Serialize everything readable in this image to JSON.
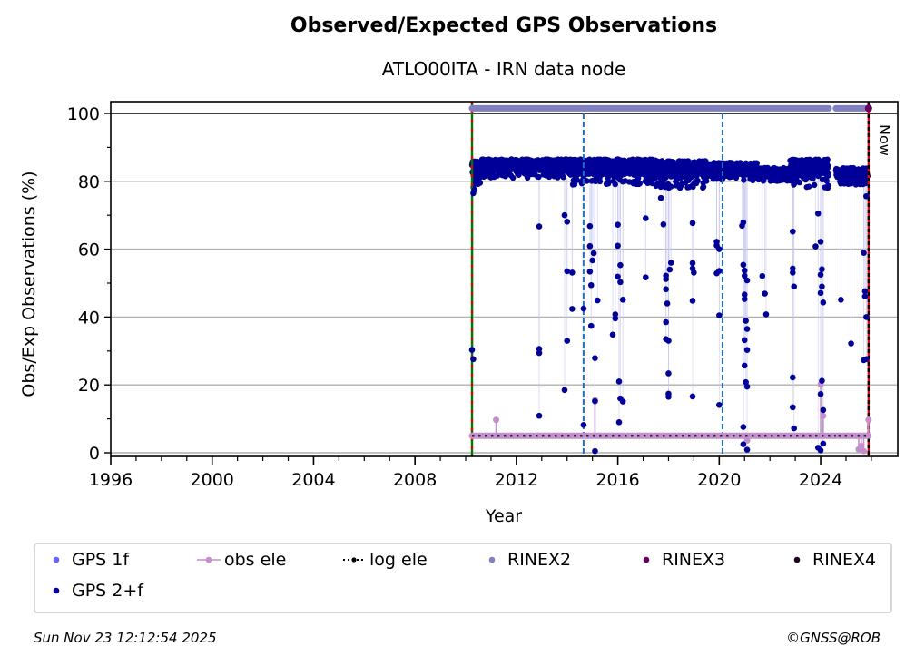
{
  "chart_data": {
    "type": "scatter",
    "title": "Observed/Expected GPS Observations",
    "subtitle": "ATLO00ITA - IRN data node",
    "xlabel": "Year",
    "ylabel": "Obs/Exp Observations (%)",
    "xlim": [
      1996,
      2026.8
    ],
    "ylim": [
      -1,
      103.5
    ],
    "xticks": [
      1996,
      2000,
      2004,
      2008,
      2012,
      2016,
      2020,
      2024
    ],
    "xtick_labels": [
      "1996",
      "2000",
      "2004",
      "2008",
      "2012",
      "2016",
      "2020",
      "2024"
    ],
    "yticks": [
      0,
      20,
      40,
      60,
      80,
      100
    ],
    "ytick_labels": [
      "0",
      "20",
      "40",
      "60",
      "80",
      "100"
    ],
    "grid": "y",
    "now_label": "Now",
    "vertical_markers": [
      {
        "name": "first-data",
        "year": 2010.25,
        "style": "green-red-dashed"
      },
      {
        "name": "equipment-change",
        "year": 2014.65,
        "style": "blue-dashed"
      },
      {
        "name": "equipment-change",
        "year": 2020.13,
        "style": "blue-dashed"
      },
      {
        "name": "now",
        "year": 2025.89,
        "style": "black-red-dashed"
      }
    ],
    "series": [
      {
        "name": "GPS 1f",
        "color": "#6666ff",
        "points": []
      },
      {
        "name": "GPS 2+f",
        "color": "#000099",
        "band": [
          {
            "x0": 2010.25,
            "x1": 2010.6,
            "ymin": 76,
            "ymax": 86
          },
          {
            "x0": 2010.6,
            "x1": 2014.2,
            "ymin": 81,
            "ymax": 86.5
          },
          {
            "x0": 2014.2,
            "x1": 2017.5,
            "ymin": 79,
            "ymax": 86.5
          },
          {
            "x0": 2017.5,
            "x1": 2019.5,
            "ymin": 78,
            "ymax": 86
          },
          {
            "x0": 2019.5,
            "x1": 2021.5,
            "ymin": 80,
            "ymax": 85.5
          },
          {
            "x0": 2021.5,
            "x1": 2022.8,
            "ymin": 80,
            "ymax": 84
          },
          {
            "x0": 2022.8,
            "x1": 2024.3,
            "ymin": 78,
            "ymax": 86.5
          },
          {
            "x0": 2024.6,
            "x1": 2025.85,
            "ymin": 79,
            "ymax": 84
          }
        ],
        "points": [
          [
            2010.25,
            30.3
          ],
          [
            2010.3,
            27.6
          ],
          [
            2010.3,
            76.5
          ],
          [
            2010.35,
            77.5
          ],
          [
            2012.9,
            66.7
          ],
          [
            2012.9,
            30.6
          ],
          [
            2012.9,
            29.4
          ],
          [
            2012.9,
            10.9
          ],
          [
            2013.9,
            70
          ],
          [
            2013.9,
            18.5
          ],
          [
            2014.0,
            68.1
          ],
          [
            2014.0,
            53.5
          ],
          [
            2014.0,
            33
          ],
          [
            2014.2,
            53.1
          ],
          [
            2014.2,
            42.4
          ],
          [
            2014.65,
            42.5
          ],
          [
            2014.65,
            8.2
          ],
          [
            2014.9,
            66.8
          ],
          [
            2014.9,
            60.9
          ],
          [
            2014.9,
            53.4
          ],
          [
            2014.95,
            49.4
          ],
          [
            2014.95,
            37.4
          ],
          [
            2015.0,
            56.7
          ],
          [
            2015.05,
            58.8
          ],
          [
            2015.1,
            27.9
          ],
          [
            2015.2,
            44.9
          ],
          [
            2015.1,
            15.2
          ],
          [
            2015.1,
            0.5
          ],
          [
            2015.8,
            34.8
          ],
          [
            2015.9,
            40.8
          ],
          [
            2015.9,
            39.6
          ],
          [
            2016.0,
            67.2
          ],
          [
            2016.0,
            61
          ],
          [
            2016.0,
            51.9
          ],
          [
            2016.1,
            55.3
          ],
          [
            2016.1,
            50.3
          ],
          [
            2016.2,
            45.1
          ],
          [
            2016.05,
            21
          ],
          [
            2016.05,
            9
          ],
          [
            2016.1,
            16
          ],
          [
            2016.2,
            15.1
          ],
          [
            2017.1,
            69.1
          ],
          [
            2017.1,
            51.7
          ],
          [
            2017.7,
            75.1
          ],
          [
            2017.8,
            67.3
          ],
          [
            2017.9,
            52.2
          ],
          [
            2017.9,
            51.2
          ],
          [
            2017.9,
            48.2
          ],
          [
            2017.95,
            44
          ],
          [
            2017.9,
            38.5
          ],
          [
            2018.0,
            33
          ],
          [
            2017.9,
            33.5
          ],
          [
            2018.0,
            23.4
          ],
          [
            2018.0,
            17.4
          ],
          [
            2018.0,
            16.5
          ],
          [
            2018.05,
            54
          ],
          [
            2018.1,
            56
          ],
          [
            2018.95,
            67.7
          ],
          [
            2018.95,
            55.9
          ],
          [
            2018.95,
            54.3
          ],
          [
            2019.0,
            53.1
          ],
          [
            2018.95,
            44.8
          ],
          [
            2018.95,
            16.6
          ],
          [
            2019.9,
            62.2
          ],
          [
            2019.9,
            61.1
          ],
          [
            2020.0,
            60
          ],
          [
            2020.0,
            53.6
          ],
          [
            2019.9,
            52.9
          ],
          [
            2020.0,
            40.5
          ],
          [
            2020.0,
            14.1
          ],
          [
            2020.95,
            67.9
          ],
          [
            2020.9,
            66.9
          ],
          [
            2020.95,
            55.4
          ],
          [
            2021.0,
            53.7
          ],
          [
            2021.0,
            52.2
          ],
          [
            2021.1,
            50.8
          ],
          [
            2021.0,
            46.6
          ],
          [
            2021.0,
            45.3
          ],
          [
            2021.05,
            38.9
          ],
          [
            2021.1,
            36.5
          ],
          [
            2021.0,
            33.2
          ],
          [
            2021.1,
            30.3
          ],
          [
            2021.0,
            25.7
          ],
          [
            2021.05,
            20.8
          ],
          [
            2021.1,
            19.5
          ],
          [
            2020.95,
            7.6
          ],
          [
            2020.95,
            2.5
          ],
          [
            2021.1,
            0.9
          ],
          [
            2021.7,
            52.1
          ],
          [
            2021.8,
            46.9
          ],
          [
            2021.85,
            40.8
          ],
          [
            2022.9,
            65.2
          ],
          [
            2022.9,
            54.3
          ],
          [
            2022.9,
            53.1
          ],
          [
            2022.95,
            49
          ],
          [
            2022.9,
            22.2
          ],
          [
            2022.9,
            13.4
          ],
          [
            2022.95,
            7.2
          ],
          [
            2023.9,
            70.5
          ],
          [
            2023.8,
            60.8
          ],
          [
            2024.0,
            62.2
          ],
          [
            2024.05,
            54.1
          ],
          [
            2024.0,
            52.5
          ],
          [
            2024.05,
            49
          ],
          [
            2024.0,
            47.1
          ],
          [
            2024.1,
            44.3
          ],
          [
            2024.05,
            21.2
          ],
          [
            2024.0,
            17.3
          ],
          [
            2024.1,
            12.6
          ],
          [
            2023.9,
            1.5
          ],
          [
            2024.0,
            0.7
          ],
          [
            2024.1,
            2.7
          ],
          [
            2024.8,
            45.1
          ],
          [
            2025.2,
            32.2
          ],
          [
            2025.7,
            58.9
          ],
          [
            2025.75,
            47.6
          ],
          [
            2025.75,
            46.1
          ],
          [
            2025.7,
            27.3
          ],
          [
            2025.8,
            27.6
          ],
          [
            2025.8,
            75.6
          ],
          [
            2025.8,
            40
          ]
        ]
      },
      {
        "name": "obs ele",
        "color": "#c38fcf",
        "baseline": 5,
        "segments": [
          [
            2010.25,
            2024.6
          ],
          [
            2024.7,
            2025.89
          ]
        ],
        "stems": [
          [
            2011.2,
            9.7
          ],
          [
            2015.1,
            15.5
          ],
          [
            2024.0,
            20.1
          ],
          [
            2024.1,
            10.9
          ],
          [
            2021.1,
            3.6
          ],
          [
            2025.89,
            9.7
          ],
          [
            2025.5,
            1
          ],
          [
            2025.6,
            2
          ],
          [
            2025.7,
            0.5
          ]
        ]
      },
      {
        "name": "log ele",
        "color": "#000000",
        "baseline": 5,
        "segments": [
          [
            2010.25,
            2024.6
          ],
          [
            2024.7,
            2025.89
          ]
        ]
      },
      {
        "name": "RINEX2",
        "color": "#8080c0",
        "level": 101.5,
        "segments": [
          [
            2010.25,
            2024.32
          ],
          [
            2024.6,
            2025.85
          ]
        ]
      },
      {
        "name": "RINEX3",
        "color": "#660066",
        "level": 101.5,
        "points": [
          [
            2025.89,
            101.5
          ]
        ]
      },
      {
        "name": "RINEX4",
        "color": "#220022",
        "points": []
      }
    ],
    "legend": {
      "placement": "bottom",
      "entries": [
        {
          "label": "GPS 1f",
          "color": "#6666ff",
          "kind": "dot"
        },
        {
          "label": "obs ele",
          "color": "#c38fcf",
          "kind": "line-dot"
        },
        {
          "label": "log ele",
          "color": "#000000",
          "kind": "dotted-line"
        },
        {
          "label": "RINEX2",
          "color": "#8080c0",
          "kind": "dot"
        },
        {
          "label": "RINEX3",
          "color": "#660066",
          "kind": "dot"
        },
        {
          "label": "RINEX4",
          "color": "#220022",
          "kind": "dot"
        },
        {
          "label": "GPS 2+f",
          "color": "#000099",
          "kind": "dot"
        }
      ]
    }
  },
  "footer": {
    "timestamp": "Sun Nov 23 12:12:54 2025",
    "copyright": "©GNSS@ROB"
  }
}
